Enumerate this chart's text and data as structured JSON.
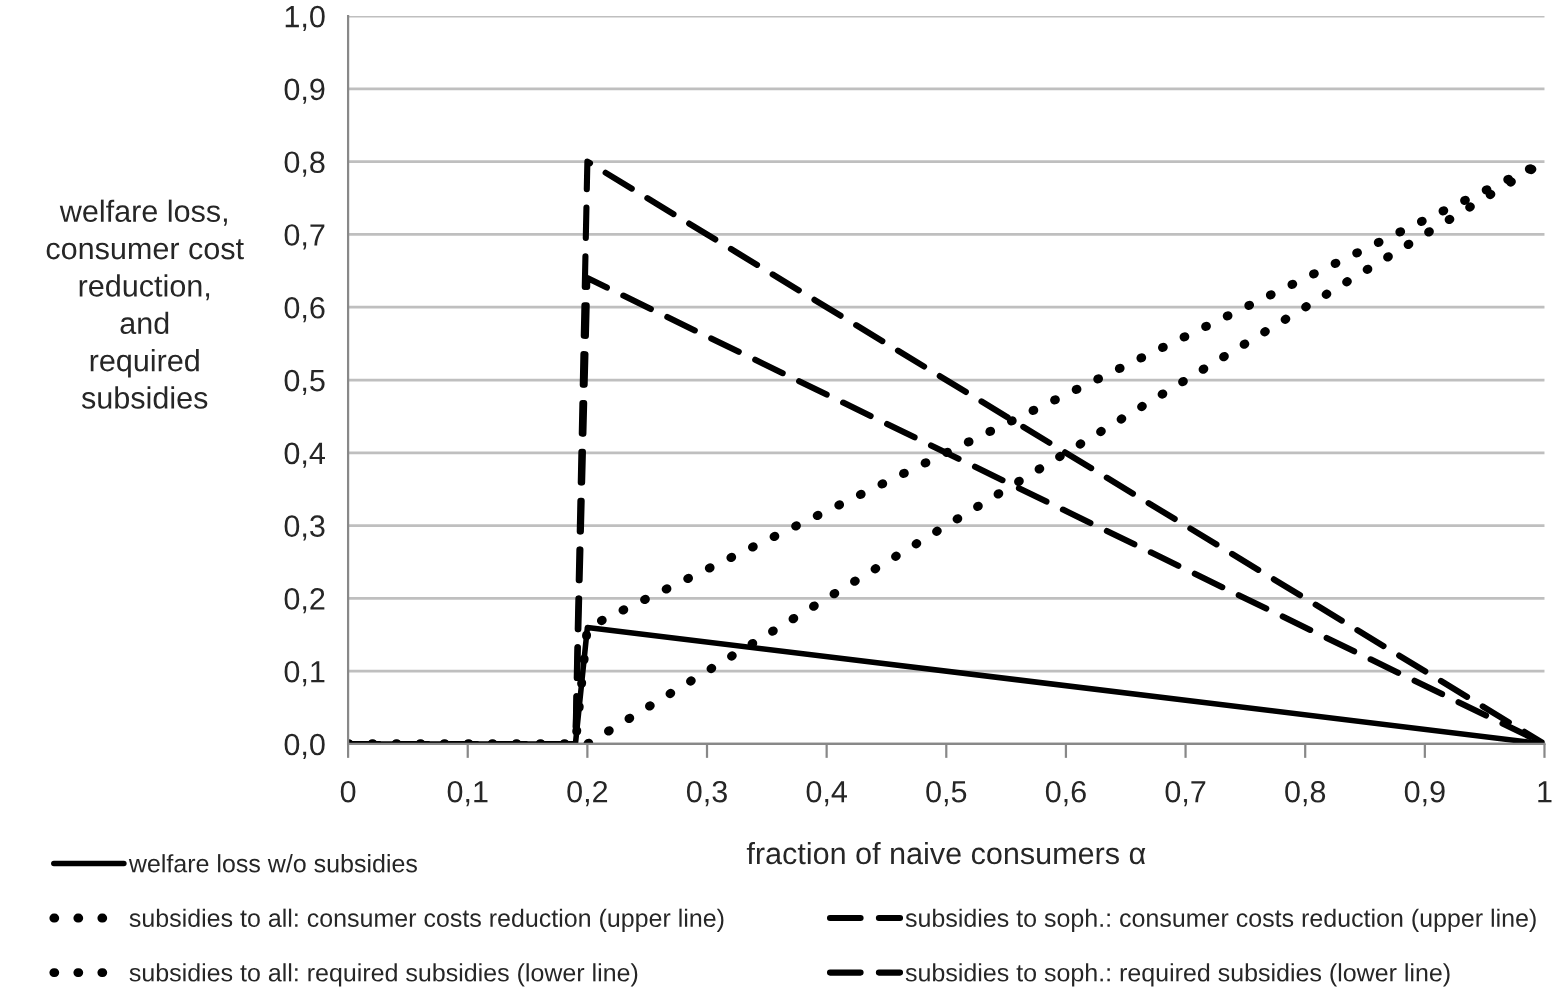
{
  "chart_data": {
    "type": "line",
    "xlabel": "fraction of naive consumers α",
    "ylabel": "welfare loss,\nconsumer cost\nreduction,\nand\nrequired\nsubsidies",
    "series": [
      {
        "name": "welfare loss w/o subsidies",
        "color": "#000000",
        "line_style": "solid",
        "x": [
          0,
          0.19,
          0.2,
          1
        ],
        "values": [
          0,
          0,
          0.16,
          0
        ]
      },
      {
        "name": "subsidies to all: consumer costs reduction (upper line)",
        "color": "#000000",
        "line_style": "dotted",
        "x": [
          0,
          0.19,
          0.2,
          1
        ],
        "values": [
          0,
          0,
          0.16,
          0.8
        ]
      },
      {
        "name": "subsidies to all: required subsidies (lower line)",
        "color": "#000000",
        "line_style": "dotted",
        "x": [
          0,
          0.2,
          1
        ],
        "values": [
          0,
          0,
          0.8
        ]
      },
      {
        "name": "subsidies to soph.: consumer costs reduction (upper line)",
        "color": "#000000",
        "line_style": "dashed",
        "x": [
          0,
          0.19,
          0.2,
          1
        ],
        "values": [
          0,
          0,
          0.8,
          0
        ]
      },
      {
        "name": "subsidies to soph.: required subsidies (lower line)",
        "color": "#000000",
        "line_style": "dashed",
        "x": [
          0,
          0.19,
          0.2,
          1
        ],
        "values": [
          0,
          0,
          0.64,
          0
        ]
      }
    ],
    "xlim": [
      0,
      1
    ],
    "xticks": [
      0,
      {
        "value": 0.1,
        "label": "0,1"
      },
      {
        "value": 0.2,
        "label": "0,2"
      },
      {
        "value": 0.3,
        "label": "0,3"
      },
      {
        "value": 0.4,
        "label": "0,4"
      },
      {
        "value": 0.5,
        "label": "0,5"
      },
      {
        "value": 0.6,
        "label": "0,6"
      },
      {
        "value": 0.7,
        "label": "0,7"
      },
      {
        "value": 0.8,
        "label": "0,8"
      },
      {
        "value": 0.9,
        "label": "0,9"
      },
      1
    ],
    "ylim": [
      0,
      1
    ],
    "yticks": [
      {
        "value": 0,
        "label": "0,0"
      },
      {
        "value": 0.1,
        "label": "0,1"
      },
      {
        "value": 0.2,
        "label": "0,2"
      },
      {
        "value": 0.3,
        "label": "0,3"
      },
      {
        "value": 0.4,
        "label": "0,4"
      },
      {
        "value": 0.5,
        "label": "0,5"
      },
      {
        "value": 0.6,
        "label": "0,6"
      },
      {
        "value": 0.7,
        "label": "0,7"
      },
      {
        "value": 0.8,
        "label": "0,8"
      },
      {
        "value": 0.9,
        "label": "0,9"
      },
      {
        "value": 1,
        "label": "1,0"
      }
    ],
    "grid": "y",
    "legend": "bottom"
  }
}
